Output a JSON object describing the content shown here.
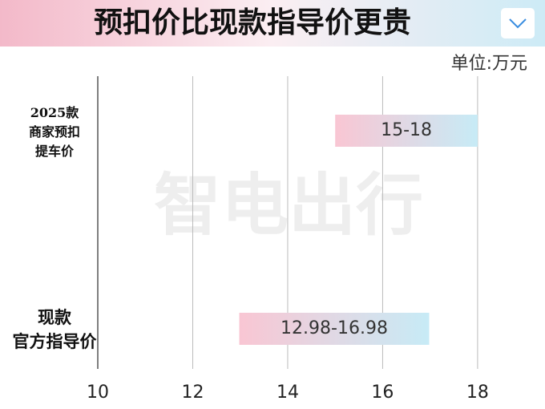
{
  "chart_data": {
    "type": "range-bar",
    "title": "预扣价比现款指导价更贵",
    "unit": "单位:万元",
    "watermark": "智电出行",
    "categories": [
      "2025款\n商家预扣\n提车价",
      "现款\n官方指导价"
    ],
    "low": [
      15,
      12.98
    ],
    "high": [
      18,
      16.98
    ],
    "value_labels": [
      "15-18",
      "12.98-16.98"
    ],
    "colors": [
      "#f9c6d3",
      "#c7ebf6"
    ],
    "xlim": [
      10,
      19.2
    ],
    "xticks": [
      10,
      12,
      14,
      16,
      18
    ],
    "grid": true
  }
}
